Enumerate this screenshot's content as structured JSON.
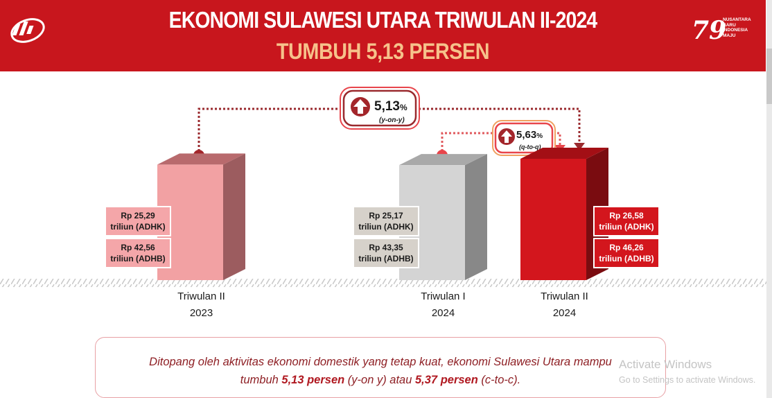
{
  "header": {
    "title": "EKONOMI SULAWESI UTARA TRIWULAN II-2024",
    "subtitle": "TUMBUH 5,13 PERSEN",
    "logo_right_text": [
      "NUSANTARA",
      "BARU",
      "INDONESIA",
      "MAJU"
    ],
    "logo_right_number": "79"
  },
  "colors": {
    "brand_red": "#c8161d",
    "bar_2023": "#f2a1a3",
    "bar_q1_2024": "#d4d4d4",
    "bar_q2_2024": "#d3161d"
  },
  "growth": {
    "yoy": {
      "value": "5,13",
      "unit": "%",
      "label": "(y-on-y)"
    },
    "qtq": {
      "value": "5,63",
      "unit": "%",
      "label": "(q-to-q)"
    }
  },
  "chart_data": {
    "type": "bar",
    "categories": [
      {
        "line1": "Triwulan II",
        "line2": "2023"
      },
      {
        "line1": "Triwulan I",
        "line2": "2024"
      },
      {
        "line1": "Triwulan II",
        "line2": "2024"
      }
    ],
    "values_adhk": [
      25.29,
      25.17,
      26.58
    ],
    "values_adhb": [
      42.56,
      43.35,
      46.26
    ],
    "labels_adhk": [
      {
        "line1": "Rp 25,29",
        "line2": "triliun (ADHK)"
      },
      {
        "line1": "Rp 25,17",
        "line2": "triliun (ADHK)"
      },
      {
        "line1": "Rp 26,58",
        "line2": "triliun (ADHK)"
      }
    ],
    "labels_adhb": [
      {
        "line1": "Rp 42,56",
        "line2": "triliun (ADHB)"
      },
      {
        "line1": "Rp 43,35",
        "line2": "triliun (ADHB)"
      },
      {
        "line1": "Rp 46,26",
        "line2": "triliun (ADHB)"
      }
    ]
  },
  "footer": {
    "text_1": "Ditopang oleh aktivitas ekonomi domestik yang tetap kuat, ekonomi Sulawesi Utara mampu",
    "text_2a": "tumbuh ",
    "text_2b": "5,13 persen",
    "text_2c": " (y-on y) atau ",
    "text_2d": "5,37 persen",
    "text_2e": " (c-to-c)."
  },
  "watermark": {
    "line1": "Activate Windows",
    "line2": "Go to Settings to activate Windows."
  }
}
